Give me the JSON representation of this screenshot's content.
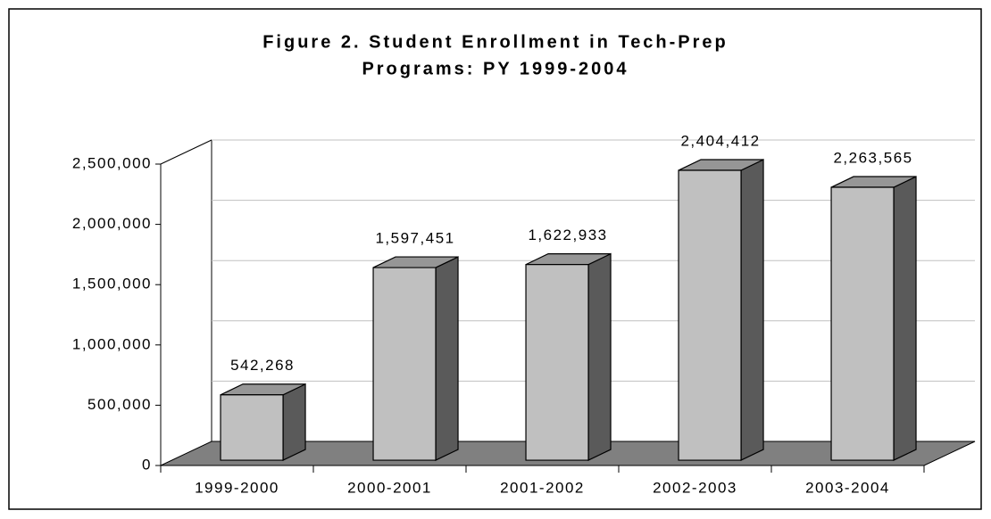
{
  "chart_data": {
    "type": "bar3d",
    "title": [
      "Figure 2.  Student Enrollment in Tech-Prep",
      "Programs: PY 1999-2004"
    ],
    "categories": [
      "1999-2000",
      "2000-2001",
      "2001-2002",
      "2002-2003",
      "2003-2004"
    ],
    "values": [
      542268,
      1597451,
      1622933,
      2404412,
      2263565
    ],
    "value_labels": [
      "542,268",
      "1,597,451",
      "1,622,933",
      "2,404,412",
      "2,263,565"
    ],
    "ylim": [
      0,
      2500000
    ],
    "yticks": [
      0,
      {
        "value": 500000,
        "label": "500,000"
      },
      {
        "value": 1000000,
        "label": "1,000,000"
      },
      {
        "value": 1500000,
        "label": "1,500,000"
      },
      {
        "value": 2000000,
        "label": "2,000,000"
      },
      {
        "value": 2500000,
        "label": "2,500,000"
      }
    ],
    "grid": true,
    "colors": {
      "front": "#c0c0c0",
      "top": "#969696",
      "side": "#5a5a5a",
      "floor": "#808080"
    }
  }
}
